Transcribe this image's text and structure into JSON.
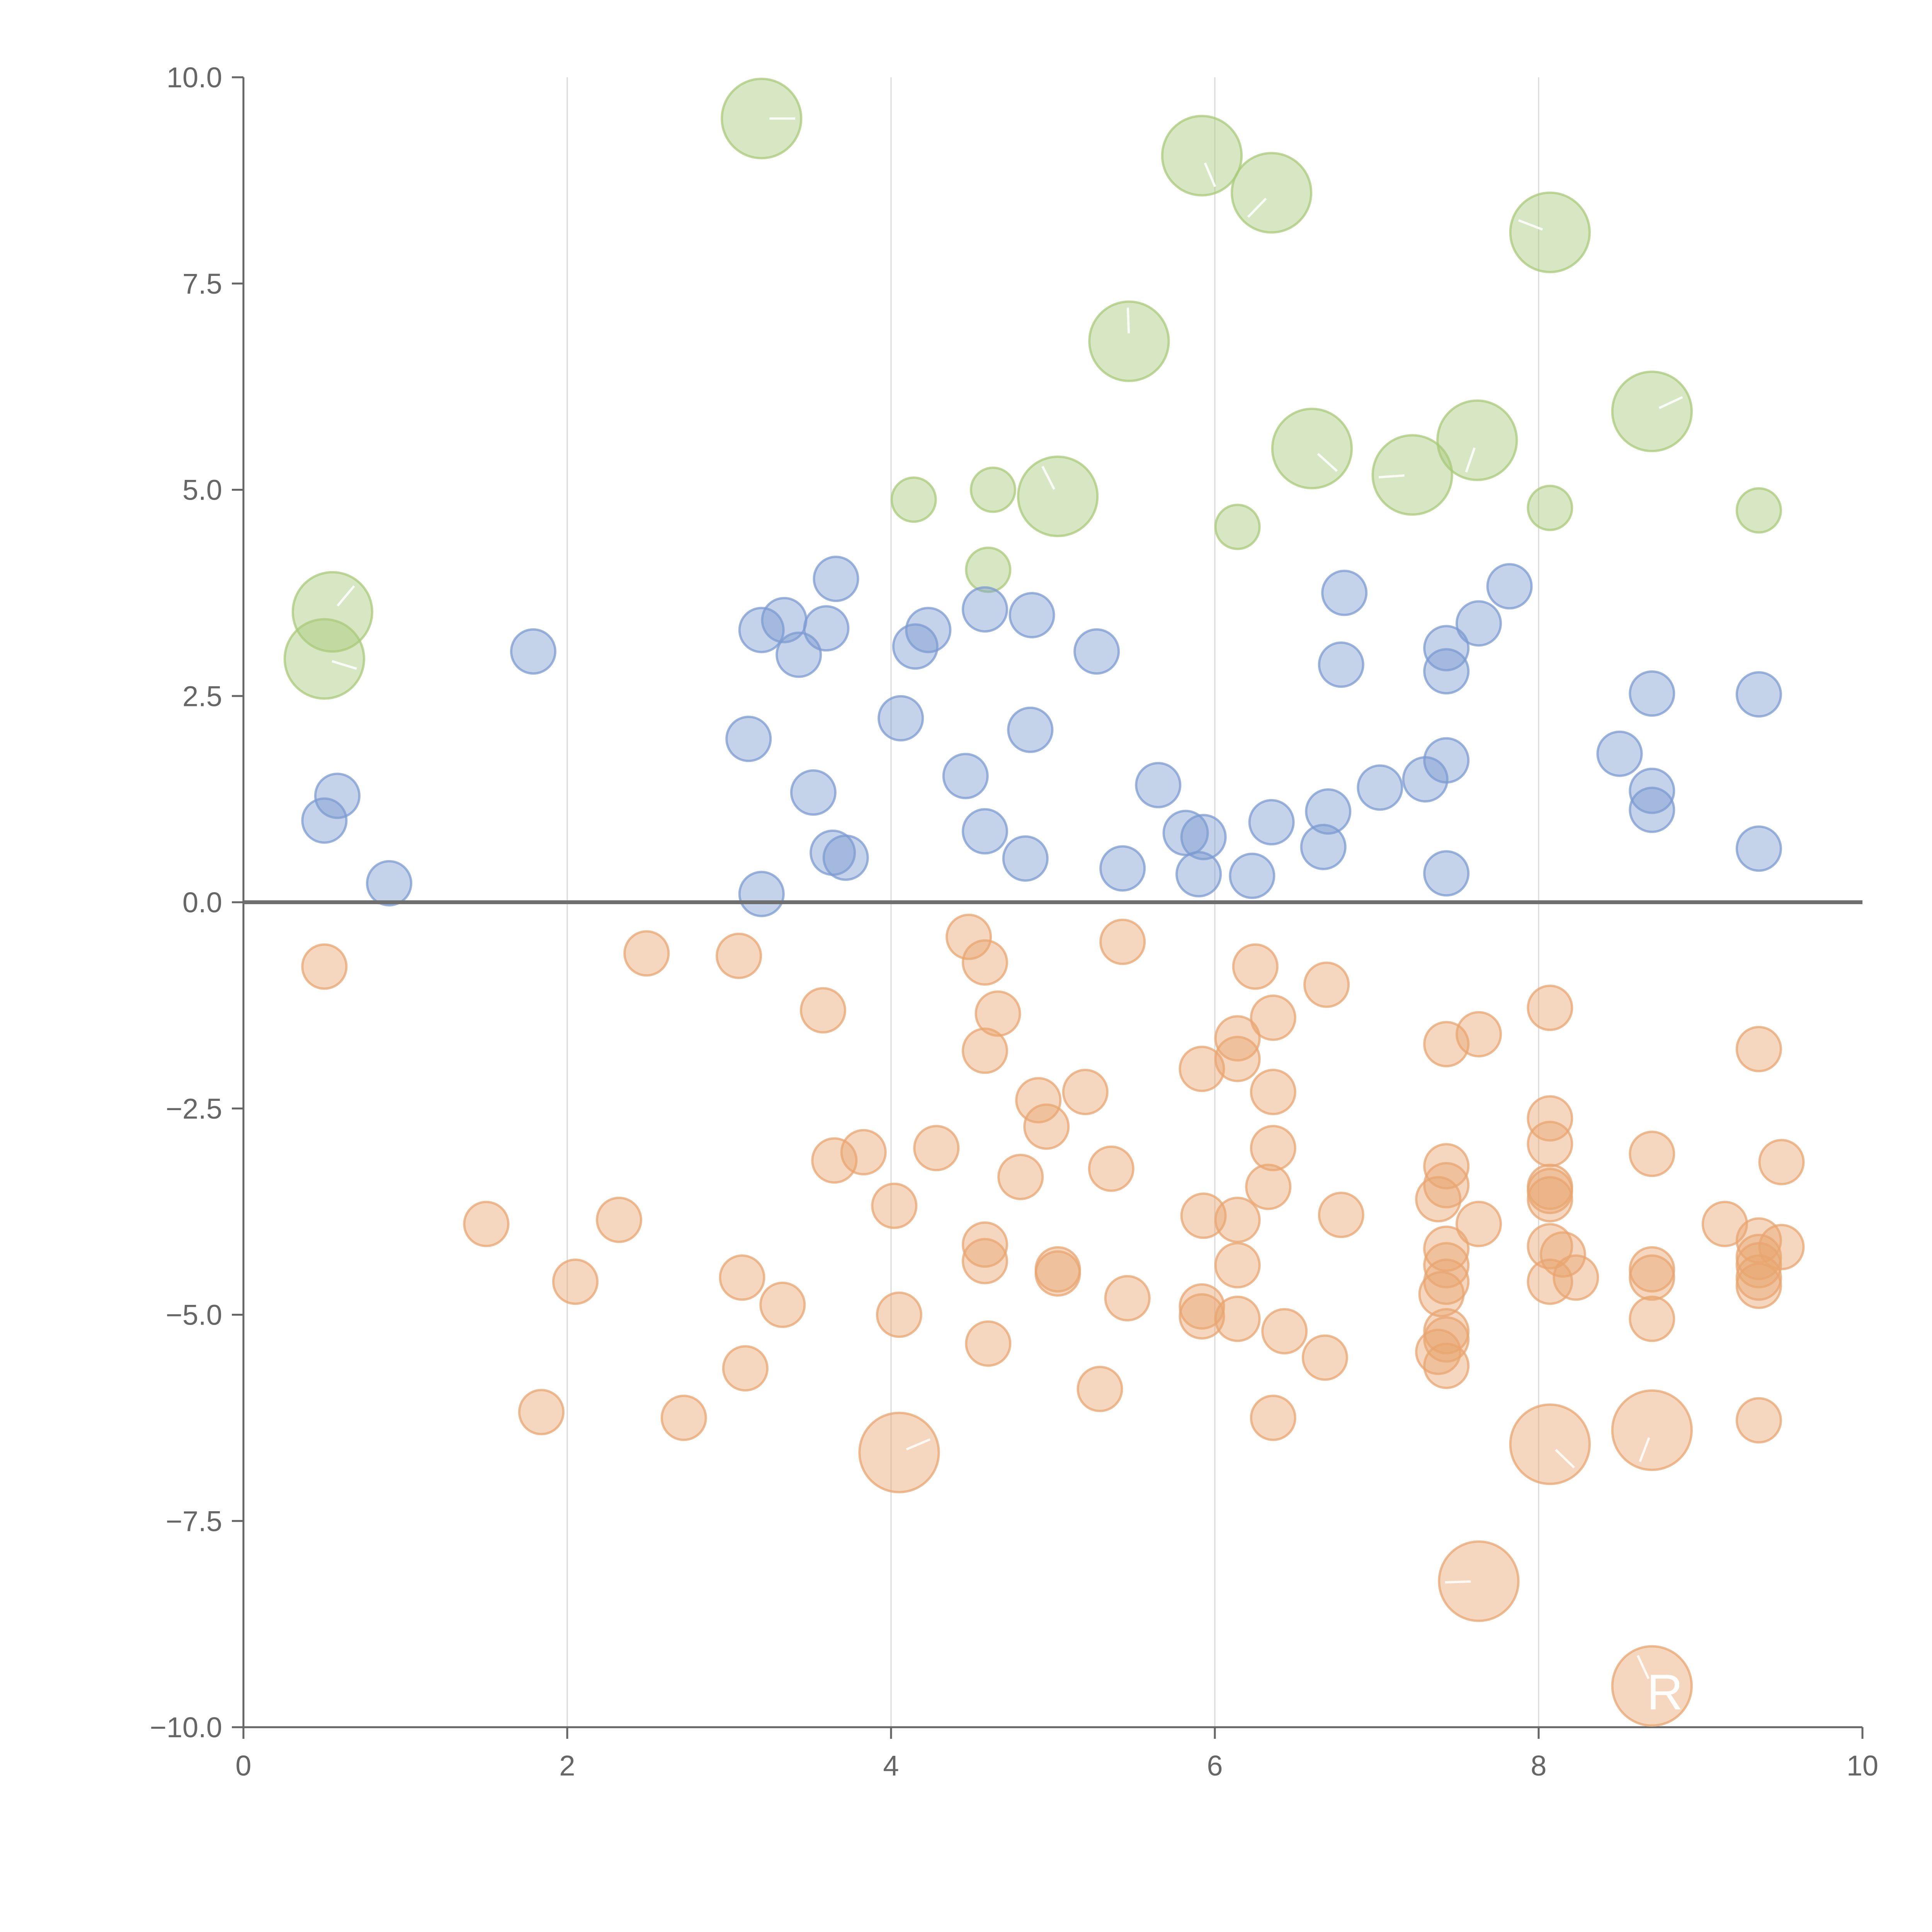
{
  "chart_data": {
    "type": "scatter",
    "title": "",
    "xlabel": "",
    "ylabel": "",
    "xlim": [
      0,
      10
    ],
    "ylim": [
      -10,
      10
    ],
    "x_ticks": [
      0,
      2,
      4,
      6,
      8,
      10
    ],
    "x_tick_labels": [
      "0",
      "2",
      "4",
      "6",
      "8",
      "10"
    ],
    "y_ticks": [
      10,
      7.5,
      5,
      2.5,
      0,
      -2.5,
      -5,
      -7.5,
      -10
    ],
    "y_tick_labels": [
      "10.0",
      "7.5",
      "5.0",
      "2.5",
      "0.0",
      "−2.5",
      "−5.0",
      "−7.5",
      "−10.0"
    ],
    "grid": "vertical",
    "reference_line_y": 0,
    "bubble_size_unit": "relative radius (1 = small bubble)",
    "series": [
      {
        "name": "green",
        "color": "#a9c97a",
        "points": [
          [
            3.2,
            9.5,
            1.8
          ],
          [
            5.92,
            9.05,
            1.8
          ],
          [
            6.35,
            8.6,
            1.8
          ],
          [
            8.07,
            8.12,
            1.8
          ],
          [
            5.47,
            6.8,
            1.8
          ],
          [
            8.7,
            5.95,
            1.8
          ],
          [
            6.6,
            5.5,
            1.8
          ],
          [
            7.62,
            5.6,
            1.8
          ],
          [
            7.22,
            5.18,
            1.8
          ],
          [
            5.03,
            4.92,
            1.8
          ],
          [
            0.55,
            3.52,
            1.8
          ],
          [
            0.5,
            2.95,
            1.8
          ],
          [
            4.14,
            4.88,
            1.0
          ],
          [
            4.63,
            5.0,
            1.0
          ],
          [
            6.14,
            4.55,
            1.0
          ],
          [
            8.07,
            4.78,
            1.0
          ],
          [
            9.36,
            4.75,
            1.0
          ],
          [
            4.6,
            4.03,
            1.0
          ]
        ]
      },
      {
        "name": "blue",
        "color": "#7c9bd1",
        "points": [
          [
            3.66,
            3.92,
            1.0
          ],
          [
            4.58,
            3.55,
            1.0
          ],
          [
            4.87,
            3.48,
            1.0
          ],
          [
            3.34,
            3.42,
            1.0
          ],
          [
            3.2,
            3.3,
            1.0
          ],
          [
            3.6,
            3.32,
            1.0
          ],
          [
            4.23,
            3.3,
            1.0
          ],
          [
            4.15,
            3.1,
            1.0
          ],
          [
            3.43,
            3.0,
            1.0
          ],
          [
            1.79,
            3.04,
            1.0
          ],
          [
            5.27,
            3.04,
            1.0
          ],
          [
            6.8,
            3.75,
            1.0
          ],
          [
            7.82,
            3.83,
            1.0
          ],
          [
            7.63,
            3.38,
            1.0
          ],
          [
            7.43,
            3.08,
            1.0
          ],
          [
            7.43,
            2.8,
            1.0
          ],
          [
            6.78,
            2.88,
            1.0
          ],
          [
            8.7,
            2.53,
            1.0
          ],
          [
            9.36,
            2.52,
            1.0
          ],
          [
            4.06,
            2.23,
            1.0
          ],
          [
            3.12,
            1.98,
            1.0
          ],
          [
            4.86,
            2.09,
            1.0
          ],
          [
            4.46,
            1.53,
            1.0
          ],
          [
            3.52,
            1.33,
            1.0
          ],
          [
            5.65,
            1.42,
            1.0
          ],
          [
            7.02,
            1.39,
            1.0
          ],
          [
            7.3,
            1.49,
            1.0
          ],
          [
            7.43,
            1.72,
            1.0
          ],
          [
            8.5,
            1.8,
            1.0
          ],
          [
            8.7,
            1.35,
            1.0
          ],
          [
            8.7,
            1.12,
            1.0
          ],
          [
            6.7,
            1.1,
            1.0
          ],
          [
            6.35,
            0.97,
            1.0
          ],
          [
            0.58,
            1.29,
            1.0
          ],
          [
            0.5,
            0.99,
            1.0
          ],
          [
            4.58,
            0.86,
            1.0
          ],
          [
            5.82,
            0.84,
            1.0
          ],
          [
            5.93,
            0.79,
            1.0
          ],
          [
            6.67,
            0.67,
            1.0
          ],
          [
            9.36,
            0.65,
            1.0
          ],
          [
            3.64,
            0.6,
            1.0
          ],
          [
            3.72,
            0.54,
            1.0
          ],
          [
            4.83,
            0.53,
            1.0
          ],
          [
            5.43,
            0.41,
            1.0
          ],
          [
            5.9,
            0.34,
            1.0
          ],
          [
            6.23,
            0.32,
            1.0
          ],
          [
            7.43,
            0.35,
            1.0
          ],
          [
            0.9,
            0.23,
            1.0
          ],
          [
            3.2,
            0.1,
            1.0
          ]
        ]
      },
      {
        "name": "orange",
        "color": "#e8a670",
        "points": [
          [
            0.5,
            -0.78,
            1.0
          ],
          [
            2.49,
            -0.62,
            1.0
          ],
          [
            3.06,
            -0.65,
            1.0
          ],
          [
            4.48,
            -0.42,
            1.0
          ],
          [
            4.58,
            -0.73,
            1.0
          ],
          [
            5.43,
            -0.48,
            1.0
          ],
          [
            6.25,
            -0.78,
            1.0
          ],
          [
            6.69,
            -1.0,
            1.0
          ],
          [
            3.58,
            -1.31,
            1.0
          ],
          [
            4.66,
            -1.35,
            1.0
          ],
          [
            4.58,
            -1.8,
            1.0
          ],
          [
            6.36,
            -1.4,
            1.0
          ],
          [
            6.14,
            -1.65,
            1.0
          ],
          [
            6.14,
            -1.9,
            1.0
          ],
          [
            5.92,
            -2.02,
            1.0
          ],
          [
            7.43,
            -1.72,
            1.0
          ],
          [
            7.63,
            -1.6,
            1.0
          ],
          [
            8.07,
            -1.28,
            1.0
          ],
          [
            9.36,
            -1.78,
            1.0
          ],
          [
            4.91,
            -2.4,
            1.0
          ],
          [
            5.2,
            -2.3,
            1.0
          ],
          [
            6.36,
            -2.3,
            1.0
          ],
          [
            4.96,
            -2.72,
            1.0
          ],
          [
            3.65,
            -3.13,
            1.0
          ],
          [
            3.83,
            -3.03,
            1.0
          ],
          [
            4.28,
            -2.98,
            1.0
          ],
          [
            6.36,
            -2.98,
            1.0
          ],
          [
            8.07,
            -2.62,
            1.0
          ],
          [
            8.07,
            -2.93,
            1.0
          ],
          [
            8.7,
            -3.05,
            1.0
          ],
          [
            9.5,
            -3.15,
            1.0
          ],
          [
            4.8,
            -3.33,
            1.0
          ],
          [
            5.36,
            -3.23,
            1.0
          ],
          [
            6.33,
            -3.45,
            1.0
          ],
          [
            7.43,
            -3.2,
            1.0
          ],
          [
            7.43,
            -3.43,
            1.0
          ],
          [
            7.38,
            -3.6,
            1.0
          ],
          [
            8.07,
            -3.45,
            1.0
          ],
          [
            8.07,
            -3.5,
            1.0
          ],
          [
            8.07,
            -3.6,
            1.0
          ],
          [
            1.5,
            -3.9,
            1.0
          ],
          [
            2.32,
            -3.85,
            1.0
          ],
          [
            4.02,
            -3.68,
            1.0
          ],
          [
            5.93,
            -3.8,
            1.0
          ],
          [
            6.14,
            -3.85,
            1.0
          ],
          [
            6.78,
            -3.79,
            1.0
          ],
          [
            7.63,
            -3.9,
            1.0
          ],
          [
            9.15,
            -3.9,
            1.0
          ],
          [
            9.36,
            -4.1,
            1.0
          ],
          [
            9.5,
            -4.18,
            1.0
          ],
          [
            4.58,
            -4.15,
            1.0
          ],
          [
            4.58,
            -4.35,
            1.0
          ],
          [
            6.14,
            -4.4,
            1.0
          ],
          [
            7.43,
            -4.2,
            1.0
          ],
          [
            7.43,
            -4.4,
            1.0
          ],
          [
            8.07,
            -4.17,
            1.0
          ],
          [
            8.15,
            -4.27,
            1.0
          ],
          [
            9.36,
            -4.3,
            1.0
          ],
          [
            9.36,
            -4.4,
            1.0
          ],
          [
            2.05,
            -4.6,
            1.0
          ],
          [
            3.08,
            -4.55,
            1.0
          ],
          [
            5.03,
            -4.45,
            1.0
          ],
          [
            5.03,
            -4.5,
            1.0
          ],
          [
            7.43,
            -4.6,
            1.0
          ],
          [
            7.4,
            -4.75,
            1.0
          ],
          [
            8.07,
            -4.6,
            1.0
          ],
          [
            8.23,
            -4.55,
            1.0
          ],
          [
            8.7,
            -4.45,
            1.0
          ],
          [
            8.7,
            -4.55,
            1.0
          ],
          [
            9.36,
            -4.55,
            1.0
          ],
          [
            9.36,
            -4.65,
            1.0
          ],
          [
            3.33,
            -4.88,
            1.0
          ],
          [
            4.05,
            -5.0,
            1.0
          ],
          [
            5.46,
            -4.8,
            1.0
          ],
          [
            5.92,
            -4.9,
            1.0
          ],
          [
            5.92,
            -5.02,
            1.0
          ],
          [
            6.14,
            -5.05,
            1.0
          ],
          [
            6.43,
            -5.2,
            1.0
          ],
          [
            7.43,
            -5.2,
            1.0
          ],
          [
            7.43,
            -5.3,
            1.0
          ],
          [
            8.7,
            -5.05,
            1.0
          ],
          [
            4.6,
            -5.35,
            1.0
          ],
          [
            6.68,
            -5.52,
            1.0
          ],
          [
            7.38,
            -5.45,
            1.0
          ],
          [
            7.43,
            -5.62,
            1.0
          ],
          [
            3.1,
            -5.65,
            1.0
          ],
          [
            5.29,
            -5.9,
            1.0
          ],
          [
            1.84,
            -6.18,
            1.0
          ],
          [
            2.72,
            -6.25,
            1.0
          ],
          [
            6.36,
            -6.25,
            1.0
          ],
          [
            9.36,
            -6.28,
            1.0
          ],
          [
            4.05,
            -6.67,
            1.8
          ],
          [
            8.07,
            -6.57,
            1.8
          ],
          [
            8.7,
            -6.4,
            1.8
          ],
          [
            7.63,
            -8.23,
            1.8
          ],
          [
            8.7,
            -9.5,
            1.8
          ]
        ]
      }
    ]
  },
  "overlay_labels": [
    {
      "text": "R",
      "x": 8.78,
      "y": -9.55
    }
  ]
}
